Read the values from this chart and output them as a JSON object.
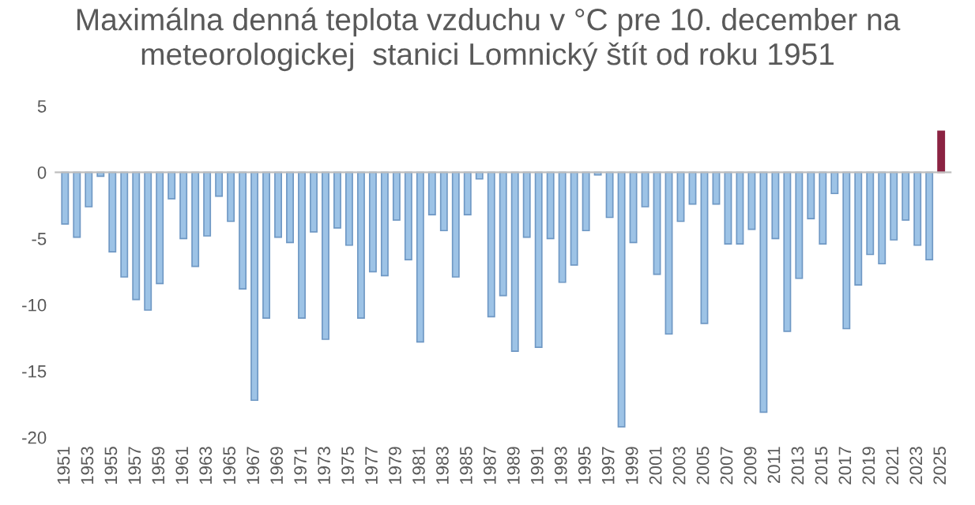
{
  "chart_data": {
    "type": "bar",
    "title": "Maximálna denná teplota vzduchu v °C pre 10. december na\nmeteorologickej  stanici Lomnický štít od roku 1951",
    "categories": [
      "1951",
      null,
      "1953",
      null,
      "1955",
      null,
      "1957",
      null,
      "1959",
      null,
      "1961",
      null,
      "1963",
      null,
      "1965",
      null,
      "1967",
      null,
      "1969",
      null,
      "1971",
      null,
      "1973",
      null,
      "1975",
      null,
      "1977",
      null,
      "1979",
      null,
      "1981",
      null,
      "1983",
      null,
      "1985",
      null,
      "1987",
      null,
      "1989",
      null,
      "1991",
      null,
      "1993",
      null,
      "1995",
      null,
      "1997",
      null,
      "1999",
      null,
      "2001",
      null,
      "2003",
      null,
      "2005",
      null,
      "2007",
      null,
      "2009",
      null,
      "2011",
      null,
      "2013",
      null,
      "2015",
      null,
      "2017",
      null,
      "2019",
      null,
      "2021",
      null,
      "2023",
      null,
      "2025"
    ],
    "values": [
      -3.9,
      -4.9,
      -2.6,
      -0.3,
      -6.0,
      -7.9,
      -9.6,
      -10.4,
      -8.4,
      -2.0,
      -5.0,
      -7.1,
      -4.8,
      -1.8,
      -3.7,
      -8.8,
      -17.2,
      -11.0,
      -4.9,
      -5.3,
      -11.0,
      -4.5,
      -12.6,
      -4.2,
      -5.5,
      -11.0,
      -7.5,
      -7.8,
      -3.6,
      -6.6,
      -12.8,
      -3.2,
      -4.4,
      -7.9,
      -3.2,
      -0.5,
      -10.9,
      -9.3,
      -13.5,
      -4.9,
      -13.2,
      -5.0,
      -8.3,
      -7.0,
      -4.4,
      -0.2,
      -3.4,
      -19.2,
      -5.3,
      -2.6,
      -7.7,
      -12.2,
      -3.7,
      -2.4,
      -11.4,
      -2.4,
      -5.4,
      -5.4,
      -4.3,
      -18.1,
      -5.0,
      -12.0,
      -8.0,
      -3.5,
      -5.4,
      -1.6,
      -11.8,
      -8.5,
      -6.2,
      -6.9,
      -5.1,
      -3.6,
      -5.5,
      -6.6,
      3.1
    ],
    "colors": [
      "#9dc3e6",
      "#9dc3e6",
      "#9dc3e6",
      "#9dc3e6",
      "#9dc3e6",
      "#9dc3e6",
      "#9dc3e6",
      "#9dc3e6",
      "#9dc3e6",
      "#9dc3e6",
      "#9dc3e6",
      "#9dc3e6",
      "#9dc3e6",
      "#9dc3e6",
      "#9dc3e6",
      "#9dc3e6",
      "#9dc3e6",
      "#9dc3e6",
      "#9dc3e6",
      "#9dc3e6",
      "#9dc3e6",
      "#9dc3e6",
      "#9dc3e6",
      "#9dc3e6",
      "#9dc3e6",
      "#9dc3e6",
      "#9dc3e6",
      "#9dc3e6",
      "#9dc3e6",
      "#9dc3e6",
      "#9dc3e6",
      "#9dc3e6",
      "#9dc3e6",
      "#9dc3e6",
      "#9dc3e6",
      "#9dc3e6",
      "#9dc3e6",
      "#9dc3e6",
      "#9dc3e6",
      "#9dc3e6",
      "#9dc3e6",
      "#9dc3e6",
      "#9dc3e6",
      "#9dc3e6",
      "#9dc3e6",
      "#9dc3e6",
      "#9dc3e6",
      "#9dc3e6",
      "#9dc3e6",
      "#9dc3e6",
      "#9dc3e6",
      "#9dc3e6",
      "#9dc3e6",
      "#9dc3e6",
      "#9dc3e6",
      "#9dc3e6",
      "#9dc3e6",
      "#9dc3e6",
      "#9dc3e6",
      "#9dc3e6",
      "#9dc3e6",
      "#9dc3e6",
      "#9dc3e6",
      "#9dc3e6",
      "#9dc3e6",
      "#9dc3e6",
      "#9dc3e6",
      "#9dc3e6",
      "#9dc3e6",
      "#9dc3e6",
      "#9dc3e6",
      "#9dc3e6",
      "#9dc3e6",
      "#9dc3e6",
      "#8b2342"
    ],
    "ylim": [
      -20,
      5
    ],
    "yticks": [
      -20,
      -15,
      -10,
      -5,
      0,
      5
    ]
  }
}
